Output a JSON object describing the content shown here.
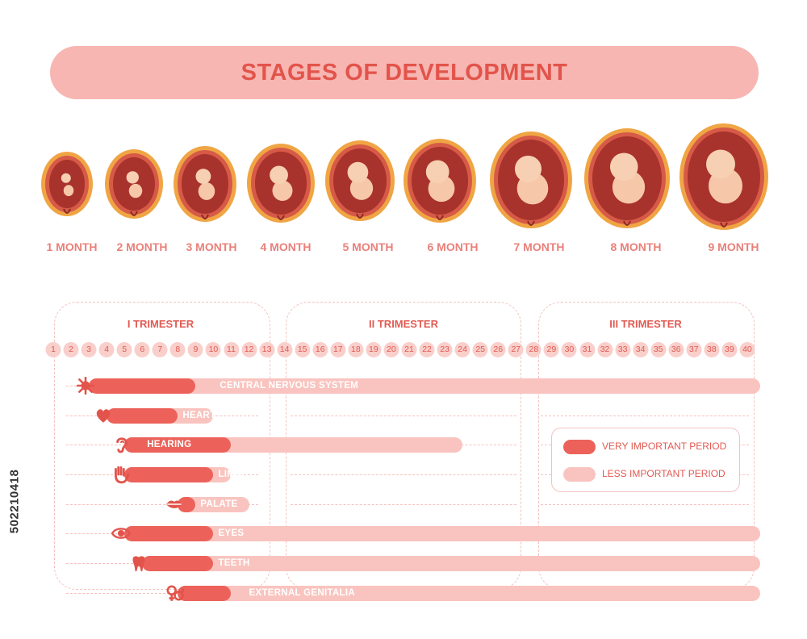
{
  "title": "STAGES OF DEVELOPMENT",
  "months": [
    "1 MONTH",
    "2 MONTH",
    "3 MONTH",
    "4 MONTH",
    "5 MONTH",
    "6 MONTH",
    "7 MONTH",
    "8 MONTH",
    "9 MONTH"
  ],
  "trimesters": [
    "I TRIMESTER",
    "II TRIMESTER",
    "III TRIMESTER"
  ],
  "weeks": [
    "1",
    "2",
    "3",
    "4",
    "5",
    "6",
    "7",
    "8",
    "9",
    "10",
    "11",
    "12",
    "13",
    "14",
    "15",
    "16",
    "17",
    "18",
    "19",
    "20",
    "21",
    "22",
    "23",
    "24",
    "25",
    "26",
    "27",
    "28",
    "29",
    "30",
    "31",
    "32",
    "33",
    "34",
    "35",
    "36",
    "37",
    "38",
    "39",
    "40"
  ],
  "systems": [
    {
      "label": "CENTRAL NERVOUS SYSTEM",
      "icon": "neuron-icon",
      "very_important_weeks": [
        3,
        9
      ],
      "less_important_weeks": [
        9,
        40
      ]
    },
    {
      "label": "HEART",
      "icon": "heart-icon",
      "very_important_weeks": [
        4,
        8
      ],
      "less_important_weeks": [
        8,
        10
      ]
    },
    {
      "label": "HEARING",
      "icon": "ear-icon",
      "very_important_weeks": [
        5,
        11
      ],
      "less_important_weeks": [
        11,
        24
      ]
    },
    {
      "label": "LIMBS",
      "icon": "hand-icon",
      "very_important_weeks": [
        5,
        10
      ],
      "less_important_weeks": [
        10,
        11
      ]
    },
    {
      "label": "PALATE",
      "icon": "lips-icon",
      "very_important_weeks": [
        8,
        9
      ],
      "less_important_weeks": [
        9,
        12
      ]
    },
    {
      "label": "EYES",
      "icon": "eye-icon",
      "very_important_weeks": [
        5,
        10
      ],
      "less_important_weeks": [
        10,
        40
      ]
    },
    {
      "label": "TEETH",
      "icon": "tooth-icon",
      "very_important_weeks": [
        6,
        10
      ],
      "less_important_weeks": [
        10,
        40
      ]
    },
    {
      "label": "EXTERNAL GENITALIA",
      "icon": "gender-icon",
      "very_important_weeks": [
        8,
        11
      ],
      "less_important_weeks": [
        11,
        40
      ]
    }
  ],
  "legend": {
    "very_important": "VERY IMPORTANT PERIOD",
    "less_important": "LESS IMPORTANT PERIOD"
  },
  "colors": {
    "dark": "#ec625a",
    "light": "#f9c4bf",
    "text": "#e15a52"
  },
  "side_id": "502210418"
}
